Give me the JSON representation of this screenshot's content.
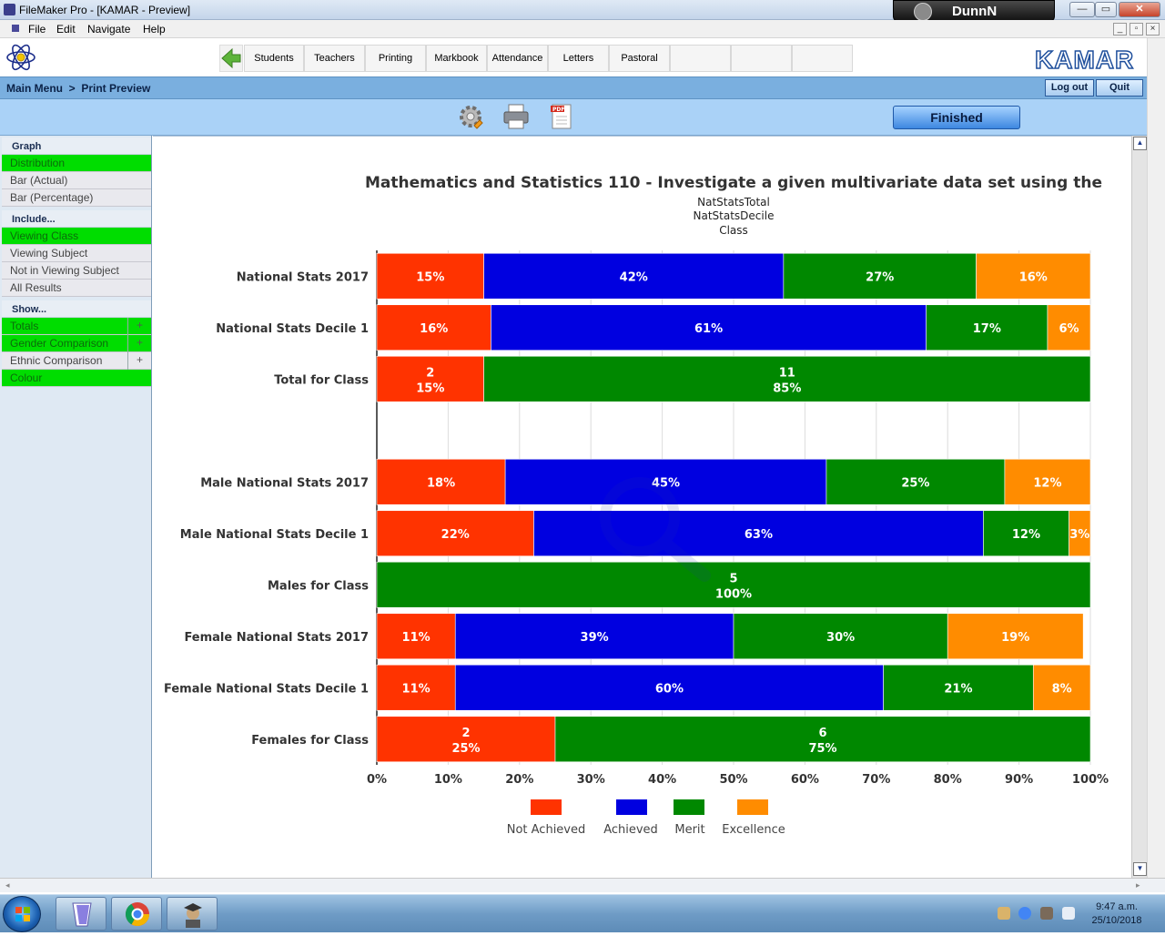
{
  "window": {
    "title": "FileMaker Pro - [KAMAR - Preview]",
    "user": "DunnN",
    "controls": {
      "minimize": "—",
      "maximize": "▭",
      "close": "✕"
    }
  },
  "menu": [
    "File",
    "Edit",
    "Navigate",
    "Help"
  ],
  "mdi_controls": [
    "_",
    "▫",
    "×"
  ],
  "nav": {
    "back_icon": "back-arrow-icon",
    "tabs": [
      "Students",
      "Teachers",
      "Printing",
      "Markbook",
      "Attendance",
      "Letters",
      "Pastoral",
      "",
      ""
    ],
    "logo_text": "KAMAR"
  },
  "breadcrumb": "Main Menu  >  Print Preview",
  "top_buttons": {
    "logout": "Log out",
    "quit": "Quit"
  },
  "actions": {
    "settings_icon": "gear-icon",
    "print_icon": "printer-icon",
    "pdf_icon": "pdf-icon",
    "finished": "Finished"
  },
  "sidebar": {
    "graph_header": "Graph",
    "graph_items": [
      {
        "label": "Distribution",
        "active": true
      },
      {
        "label": "Bar (Actual)",
        "active": false
      },
      {
        "label": "Bar (Percentage)",
        "active": false
      }
    ],
    "include_header": "Include...",
    "include_items": [
      {
        "label": "Viewing Class",
        "active": true
      },
      {
        "label": "Viewing Subject",
        "active": false
      },
      {
        "label": "Not in Viewing Subject",
        "active": false
      },
      {
        "label": "All Results",
        "active": false
      }
    ],
    "show_header": "Show...",
    "show_items": [
      {
        "label": "Totals",
        "active": true,
        "plus": "+"
      },
      {
        "label": "Gender Comparison",
        "active": true,
        "plus": "+"
      },
      {
        "label": "Ethnic Comparison",
        "active": false,
        "plus": "+"
      },
      {
        "label": "Colour",
        "active": true,
        "plus": ""
      }
    ]
  },
  "chart_data": {
    "type": "bar",
    "orientation": "horizontal-stacked-percent",
    "title": "Mathematics and Statistics 110 - Investigate a given multivariate data set using the",
    "subtitles": [
      "NatStatsTotal",
      "NatStatsDecile",
      "Class"
    ],
    "x_ticks": [
      "0%",
      "10%",
      "20%",
      "30%",
      "40%",
      "50%",
      "60%",
      "70%",
      "80%",
      "90%",
      "100%"
    ],
    "xlim": [
      0,
      100
    ],
    "grid": true,
    "legend_position": "bottom",
    "colors": {
      "Not Achieved": "#ff3300",
      "Achieved": "#0000e0",
      "Merit": "#008800",
      "Excellence": "#ff8c00"
    },
    "series_names": [
      "Not Achieved",
      "Achieved",
      "Merit",
      "Excellence"
    ],
    "rows": [
      {
        "category": "National Stats 2017",
        "values": [
          15,
          42,
          27,
          16
        ],
        "counts": [
          null,
          null,
          null,
          null
        ]
      },
      {
        "category": "National Stats Decile 1",
        "values": [
          16,
          61,
          17,
          6
        ],
        "counts": [
          null,
          null,
          null,
          null
        ]
      },
      {
        "category": "Total for Class",
        "values": [
          15,
          0,
          85,
          0
        ],
        "counts": [
          2,
          null,
          11,
          null
        ]
      },
      {
        "category": "",
        "values": [],
        "counts": []
      },
      {
        "category": "Male National Stats 2017",
        "values": [
          18,
          45,
          25,
          12
        ],
        "counts": [
          null,
          null,
          null,
          null
        ]
      },
      {
        "category": "Male National Stats Decile 1",
        "values": [
          22,
          63,
          12,
          3
        ],
        "counts": [
          null,
          null,
          null,
          null
        ]
      },
      {
        "category": "Males for Class",
        "values": [
          0,
          0,
          100,
          0
        ],
        "counts": [
          null,
          null,
          5,
          null
        ]
      },
      {
        "category": "Female National Stats 2017",
        "values": [
          11,
          39,
          30,
          19
        ],
        "counts": [
          null,
          null,
          null,
          null
        ]
      },
      {
        "category": "Female National Stats Decile 1",
        "values": [
          11,
          60,
          21,
          8
        ],
        "counts": [
          null,
          null,
          null,
          null
        ]
      },
      {
        "category": "Females for Class",
        "values": [
          25,
          0,
          75,
          0
        ],
        "counts": [
          2,
          null,
          6,
          null
        ]
      }
    ]
  },
  "taskbar": {
    "apps": [
      "filemaker-icon",
      "chrome-icon",
      "kamar-icon"
    ],
    "time": "9:47 a.m.",
    "date": "25/10/2018"
  }
}
